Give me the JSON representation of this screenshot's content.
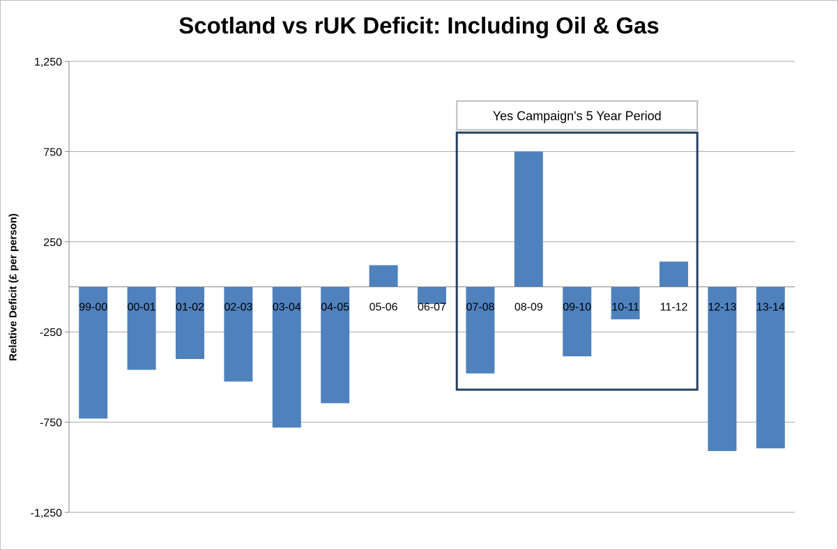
{
  "chart_data": {
    "type": "bar",
    "title": "Scotland vs rUK Deficit: Including Oil & Gas",
    "ylabel": "Relative Deficit (£ per person)",
    "xlabel": "",
    "categories": [
      "99-00",
      "00-01",
      "01-02",
      "02-03",
      "03-04",
      "04-05",
      "05-06",
      "06-07",
      "07-08",
      "08-09",
      "09-10",
      "10-11",
      "11-12",
      "12-13",
      "13-14"
    ],
    "values": [
      -730,
      -460,
      -400,
      -525,
      -780,
      -645,
      120,
      -95,
      -480,
      750,
      -385,
      -180,
      140,
      -910,
      -895
    ],
    "ylim": [
      -1250,
      1250
    ],
    "yticks": [
      -1250,
      -750,
      -250,
      250,
      750,
      1250
    ],
    "ytick_labels": [
      "-1,250",
      "-750",
      "-250",
      "250",
      "750",
      "1,250"
    ],
    "grid": true,
    "bar_color": "#4f81bd",
    "annotation": {
      "label": "Yes Campaign's 5 Year Period",
      "from_category": "07-08",
      "to_category": "11-12",
      "box_color": "#254061"
    }
  }
}
